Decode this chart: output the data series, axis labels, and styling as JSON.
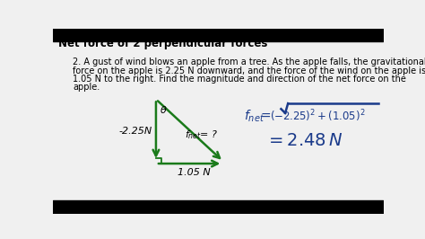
{
  "title": "Net force of 2 perpendicular forces",
  "problem_line1": "2. A gust of wind blows an apple from a tree. As the apple falls, the gravitational",
  "problem_line2": "force on the apple is 2.25 N downward, and the force of the wind on the apple is",
  "problem_line3": "1.05 N to the right. Find the magnitude and direction of the net force on the",
  "problem_line4": "apple.",
  "label_vertical": "-2.25N",
  "label_horizontal": "1.05 N",
  "label_diagonal": "f_net= ?",
  "label_theta": "θ",
  "bg_color": "#f0f0f0",
  "title_color": "#000000",
  "text_color": "#000000",
  "arrow_color": "#1a7a1a",
  "formula_color": "#1a3a8a",
  "black_bar_color": "#000000",
  "black_bar_height": 18
}
